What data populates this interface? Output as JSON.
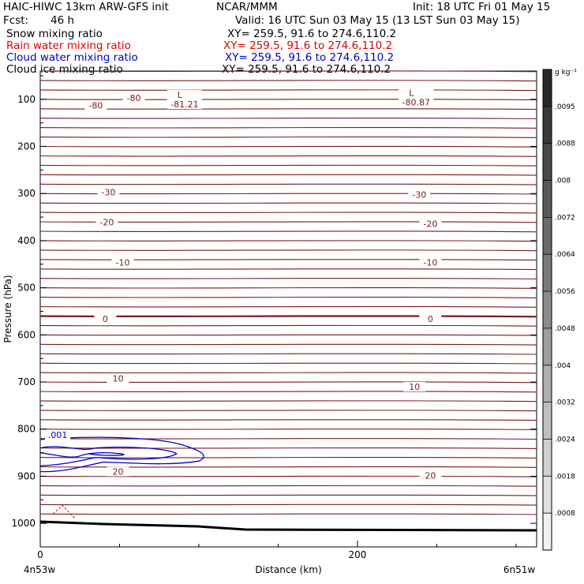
{
  "header": {
    "model": "HAIC-HIWC 13km ARW-GFS init",
    "org": "NCAR/MMM",
    "init": "Init: 18 UTC Fri 01 May 15",
    "fcst_label": "Fcst:",
    "fcst_value": "46 h",
    "valid": "Valid: 16 UTC Sun 03 May 15 (13 LST Sun 03 May 15)"
  },
  "fields": [
    {
      "name": "Snow mixing ratio",
      "xy": "XY= 259.5, 91.6 to 274.6,110.2",
      "color": "#000000"
    },
    {
      "name": "Rain water mixing ratio",
      "xy": "XY= 259.5, 91.6 to 274.6,110.2",
      "color": "#e00000"
    },
    {
      "name": "Cloud water mixing ratio",
      "xy": "XY= 259.5, 91.6 to 274.6,110.2",
      "color": "#0000cc"
    },
    {
      "name": "Cloud ice mixing ratio",
      "xy": "XY= 259.5, 91.6 to 274.6,110.2",
      "color": "#000000"
    }
  ],
  "chart_data": {
    "type": "contour",
    "ylabel": "Pressure (hPa)",
    "xlabel": "Distance (km)",
    "x_ticks": [
      0,
      200
    ],
    "y_ticks": [
      100,
      200,
      300,
      400,
      500,
      600,
      700,
      800,
      900,
      1000
    ],
    "xlim": [
      0,
      313
    ],
    "ylim": [
      1050,
      40
    ],
    "x_endpoints": {
      "left": "4n53w",
      "right": "6n51w"
    },
    "temperature_contours": {
      "color": "#7a1a1a",
      "levels_p": [
        40,
        60,
        80,
        100,
        120,
        140,
        160,
        180,
        200,
        220,
        240,
        260,
        280,
        300,
        320,
        340,
        360,
        380,
        400,
        420,
        440,
        460,
        480,
        500,
        520,
        540,
        560,
        580,
        600,
        620,
        640,
        660,
        680,
        700,
        720,
        740,
        760,
        780,
        800,
        820,
        840,
        860,
        880,
        900,
        920,
        940,
        960,
        980
      ],
      "labels": [
        {
          "text": "-80",
          "x": 59,
          "p": 97
        },
        {
          "text": "-80",
          "x": 35,
          "p": 113
        },
        {
          "text": "-30",
          "x": 43,
          "p": 297
        },
        {
          "text": "-30",
          "x": 239,
          "p": 302
        },
        {
          "text": "-20",
          "x": 42,
          "p": 361
        },
        {
          "text": "-20",
          "x": 246,
          "p": 364
        },
        {
          "text": "-10",
          "x": 52,
          "p": 446
        },
        {
          "text": "-10",
          "x": 246,
          "p": 446
        },
        {
          "text": "0",
          "x": 41,
          "p": 566
        },
        {
          "text": "0",
          "x": 246,
          "p": 566
        },
        {
          "text": "10",
          "x": 49,
          "p": 692
        },
        {
          "text": "10",
          "x": 236,
          "p": 710
        },
        {
          "text": "20",
          "x": 49,
          "p": 890
        },
        {
          "text": "20",
          "x": 246,
          "p": 898
        }
      ],
      "lows": [
        {
          "letter": "L",
          "value": "-81.21",
          "x": 91,
          "p": 97
        },
        {
          "letter": "L",
          "value": "-80.87",
          "x": 237,
          "p": 93
        }
      ]
    },
    "cloud_water": {
      "color": "#0000cc",
      "label": ".001",
      "x": 11,
      "p": 814
    },
    "colorbar": {
      "unit": "g kg⁻¹",
      "ticks": [
        ".0095",
        ".0088",
        ".008",
        ".0072",
        ".0064",
        ".0056",
        ".0048",
        ".004",
        ".0032",
        ".0024",
        ".0018",
        ".0008"
      ]
    }
  }
}
